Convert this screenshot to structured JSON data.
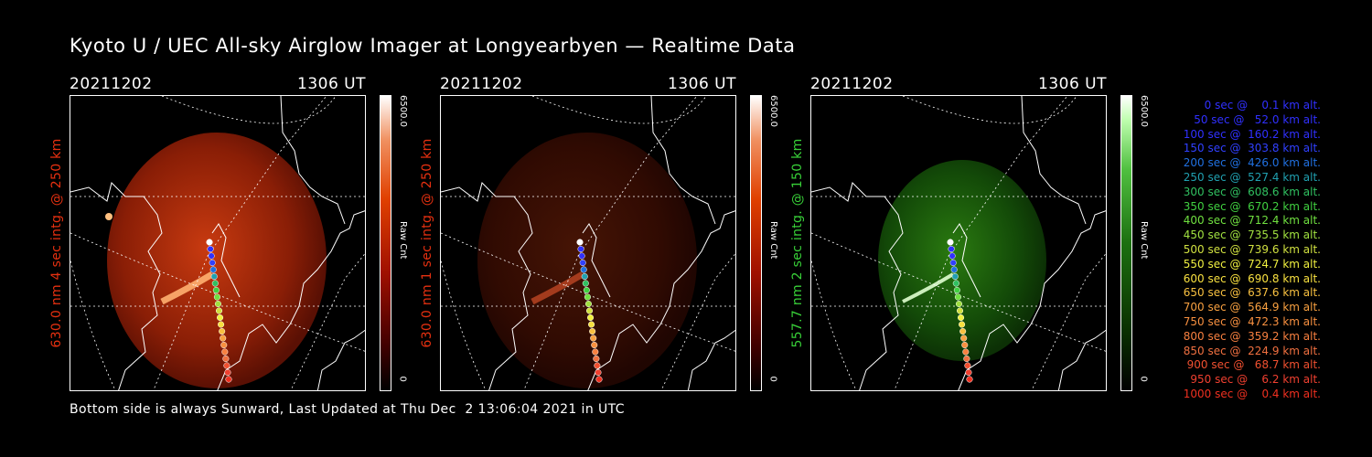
{
  "title": "Kyoto U / UEC All-sky Airglow Imager at Longyearbyen — Realtime Data",
  "footer": "Bottom side is always Sunward, Last Updated at Thu Dec  2 13:06:04 2021 in UTC",
  "panels": [
    {
      "date": "20211202",
      "time": "1306 UT",
      "side_label": "630.0 nm 4 sec intg. @ 250 km",
      "side_color": "#e63010",
      "cbar_max": "6500.0",
      "cbar_min": "0",
      "cbar_unit": "Raw Cnt",
      "colormap": "red"
    },
    {
      "date": "20211202",
      "time": "1306 UT",
      "side_label": "630.0 nm 1 sec intg. @ 250 km",
      "side_color": "#e63010",
      "cbar_max": "6500.0",
      "cbar_min": "0",
      "cbar_unit": "Raw Cnt",
      "colormap": "red"
    },
    {
      "date": "20211202",
      "time": "1306 UT",
      "side_label": "557.7 nm 2 sec intg. @ 150 km",
      "side_color": "#38d038",
      "cbar_max": "6500.0",
      "cbar_min": "0",
      "cbar_unit": "Raw Cnt",
      "colormap": "green"
    }
  ],
  "legend": [
    {
      "text": "   0 sec @    0.1 km alt.",
      "color": "#3030ff"
    },
    {
      "text": "  50 sec @   52.0 km alt.",
      "color": "#3030ff"
    },
    {
      "text": " 100 sec @  160.2 km alt.",
      "color": "#3030ff"
    },
    {
      "text": " 150 sec @  303.8 km alt.",
      "color": "#3040ff"
    },
    {
      "text": " 200 sec @  426.0 km alt.",
      "color": "#2070e0"
    },
    {
      "text": " 250 sec @  527.4 km alt.",
      "color": "#20a0b0"
    },
    {
      "text": " 300 sec @  608.6 km alt.",
      "color": "#30c060"
    },
    {
      "text": " 350 sec @  670.2 km alt.",
      "color": "#40d040"
    },
    {
      "text": " 400 sec @  712.4 km alt.",
      "color": "#70e040"
    },
    {
      "text": " 450 sec @  735.5 km alt.",
      "color": "#a0e040"
    },
    {
      "text": " 500 sec @  739.6 km alt.",
      "color": "#d0e040"
    },
    {
      "text": " 550 sec @  724.7 km alt.",
      "color": "#f0f040"
    },
    {
      "text": " 600 sec @  690.8 km alt.",
      "color": "#f8e040"
    },
    {
      "text": " 650 sec @  637.6 km alt.",
      "color": "#f8c040"
    },
    {
      "text": " 700 sec @  564.9 km alt.",
      "color": "#f8a040"
    },
    {
      "text": " 750 sec @  472.3 km alt.",
      "color": "#f89040"
    },
    {
      "text": " 800 sec @  359.2 km alt.",
      "color": "#f88040"
    },
    {
      "text": " 850 sec @  224.9 km alt.",
      "color": "#f07040"
    },
    {
      "text": " 900 sec @   68.7 km alt.",
      "color": "#f05030"
    },
    {
      "text": " 950 sec @    6.2 km alt.",
      "color": "#f04030"
    },
    {
      "text": "1000 sec @    0.4 km alt.",
      "color": "#f03020"
    }
  ]
}
